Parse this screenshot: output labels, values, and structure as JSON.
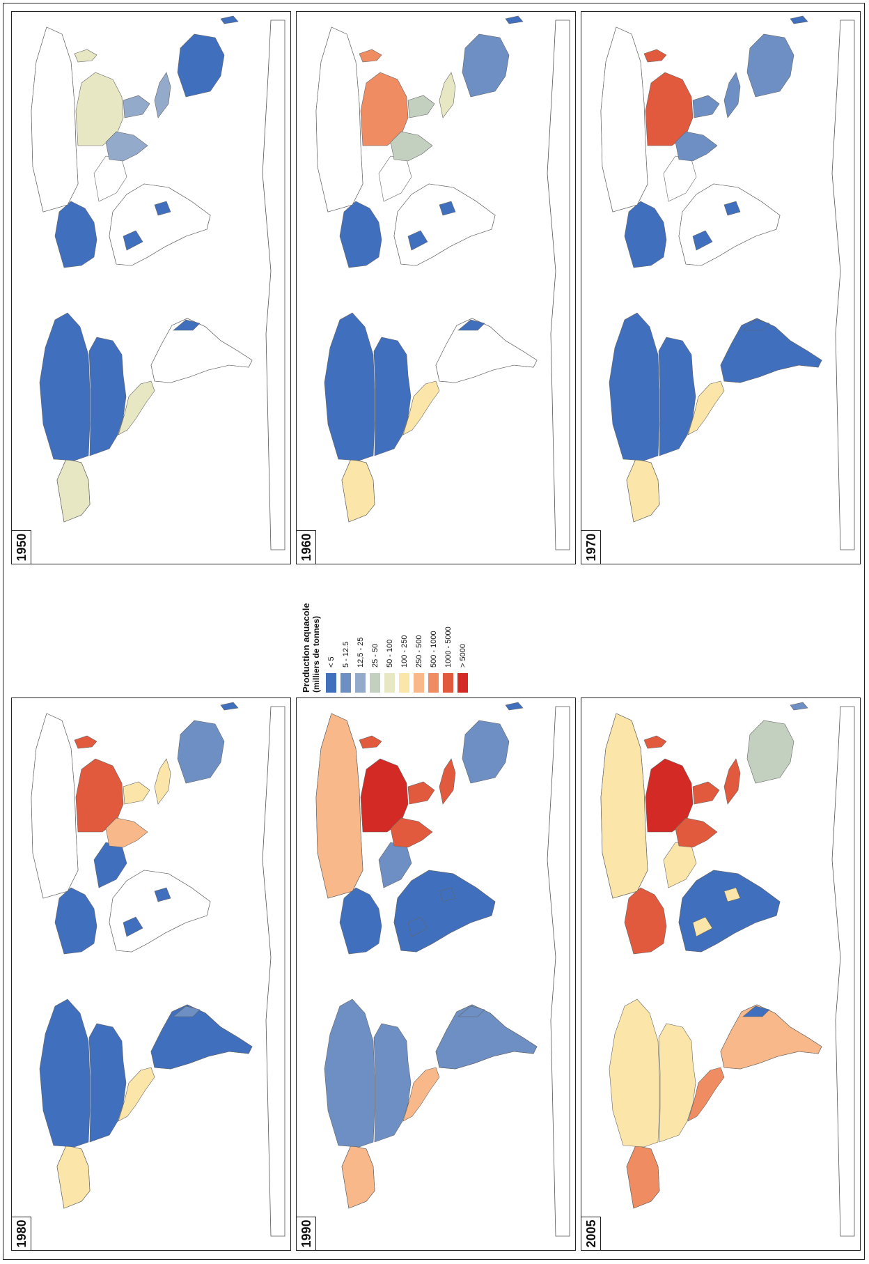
{
  "legend": {
    "title": "Production aquacole",
    "unit": "(milliers de tonnes)",
    "classes": [
      {
        "label": "< 5",
        "color": "#3f6fbd"
      },
      {
        "label": "5 - 12.5",
        "color": "#6d8fc4"
      },
      {
        "label": "12,5 - 25",
        "color": "#93aacb"
      },
      {
        "label": "25 - 50",
        "color": "#c3d0c0"
      },
      {
        "label": "50 - 100",
        "color": "#e8e7c3"
      },
      {
        "label": "100 - 250",
        "color": "#fbe5a8"
      },
      {
        "label": "250 - 500",
        "color": "#f9b889"
      },
      {
        "label": "500 - 1000",
        "color": "#ef8c62"
      },
      {
        "label": "1000 - 5000",
        "color": "#e25a3e"
      },
      {
        "label": "> 5000",
        "color": "#d42a26"
      }
    ]
  },
  "panels": [
    {
      "year": "1950",
      "classes": {
        "usa": 0,
        "canada": 0,
        "mexico": 4,
        "alaska": 4,
        "south_america": null,
        "brazil_coast": 0,
        "europe": 0,
        "africa": null,
        "africa_spots": 0,
        "russia": null,
        "china": 4,
        "india": 2,
        "se_asia": 2,
        "japan": 4,
        "australia": 0,
        "new_zealand": 0,
        "indonesia": 2,
        "middle_east": null
      }
    },
    {
      "year": "1960",
      "classes": {
        "usa": 0,
        "canada": 0,
        "mexico": 5,
        "alaska": 5,
        "south_america": null,
        "brazil_coast": 0,
        "europe": 0,
        "africa": null,
        "africa_spots": 0,
        "russia": null,
        "china": 7,
        "india": 3,
        "se_asia": 3,
        "japan": 7,
        "australia": 1,
        "new_zealand": 0,
        "indonesia": 4,
        "middle_east": null
      }
    },
    {
      "year": "1970",
      "classes": {
        "usa": 0,
        "canada": 0,
        "mexico": 5,
        "alaska": 5,
        "south_america": 0,
        "brazil_coast": 0,
        "europe": 0,
        "africa": null,
        "africa_spots": 0,
        "russia": null,
        "china": 8,
        "india": 1,
        "se_asia": 1,
        "japan": 8,
        "australia": 1,
        "new_zealand": 0,
        "indonesia": 1,
        "middle_east": null
      }
    },
    {
      "year": "1980",
      "classes": {
        "usa": 0,
        "canada": 0,
        "mexico": 5,
        "alaska": 5,
        "south_america": 0,
        "brazil_coast": 1,
        "europe": 0,
        "africa": null,
        "africa_spots": 0,
        "russia": null,
        "china": 8,
        "india": 6,
        "se_asia": 5,
        "japan": 8,
        "australia": 1,
        "new_zealand": 0,
        "indonesia": 5,
        "middle_east": 0
      }
    },
    {
      "year": "1990",
      "classes": {
        "usa": 1,
        "canada": 1,
        "mexico": 6,
        "alaska": 6,
        "south_america": 1,
        "brazil_coast": 1,
        "europe": 0,
        "africa": 0,
        "africa_spots": 0,
        "russia": 6,
        "china": 9,
        "india": 8,
        "se_asia": 8,
        "japan": 8,
        "australia": 1,
        "new_zealand": 0,
        "indonesia": 8,
        "middle_east": 1
      }
    },
    {
      "year": "2005",
      "classes": {
        "usa": 5,
        "canada": 5,
        "mexico": 7,
        "alaska": 7,
        "south_america": 6,
        "brazil_coast": 0,
        "europe": 8,
        "africa": 0,
        "africa_spots": 5,
        "russia": 5,
        "china": 9,
        "india": 8,
        "se_asia": 8,
        "japan": 8,
        "australia": 3,
        "new_zealand": 1,
        "indonesia": 8,
        "middle_east": 5
      }
    }
  ]
}
